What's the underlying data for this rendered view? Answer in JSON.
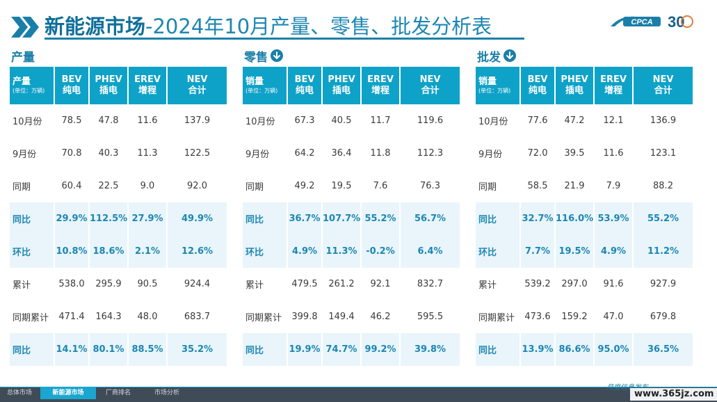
{
  "header": {
    "title_strong": "新能源市场",
    "title_rest": "-2024年10月产量、零售、批发分析表",
    "logo_text": "CPCA",
    "badge_text": "30"
  },
  "colors": {
    "accent": "#1a7fa8",
    "table_header": "#0fa2c8",
    "highlight_row": "#e9f5fa",
    "footer": "#3f4b57"
  },
  "panels": [
    {
      "title": "产量",
      "icon": "",
      "header": {
        "first": "产量",
        "first_sub": "(单位：万辆)",
        "c1a": "BEV",
        "c1b": "纯电",
        "c2a": "PHEV",
        "c2b": "插电",
        "c3a": "EREV",
        "c3b": "增程",
        "c4a": "NEV",
        "c4b": "合计"
      },
      "rows": [
        [
          "10月份",
          "78.5",
          "47.8",
          "11.6",
          "137.9"
        ],
        [
          "9月份",
          "70.8",
          "40.3",
          "11.3",
          "122.5"
        ],
        [
          "同期",
          "60.4",
          "22.5",
          "9.0",
          "92.0"
        ],
        [
          "同比",
          "29.9%",
          "112.5%",
          "27.9%",
          "49.9%"
        ],
        [
          "环比",
          "10.8%",
          "18.6%",
          "2.1%",
          "12.6%"
        ],
        [
          "累计",
          "538.0",
          "295.9",
          "90.5",
          "924.4"
        ],
        [
          "同期累计",
          "471.4",
          "164.3",
          "48.0",
          "683.7"
        ],
        [
          "同比",
          "14.1%",
          "80.1%",
          "88.5%",
          "35.2%"
        ]
      ]
    },
    {
      "title": "零售",
      "icon": "down-arrow-icon",
      "header": {
        "first": "销量",
        "first_sub": "(单位：万辆)",
        "c1a": "BEV",
        "c1b": "纯电",
        "c2a": "PHEV",
        "c2b": "插电",
        "c3a": "EREV",
        "c3b": "增程",
        "c4a": "NEV",
        "c4b": "合计"
      },
      "rows": [
        [
          "10月份",
          "67.3",
          "40.5",
          "11.7",
          "119.6"
        ],
        [
          "9月份",
          "64.2",
          "36.4",
          "11.8",
          "112.3"
        ],
        [
          "同期",
          "49.2",
          "19.5",
          "7.6",
          "76.3"
        ],
        [
          "同比",
          "36.7%",
          "107.7%",
          "55.2%",
          "56.7%"
        ],
        [
          "环比",
          "4.9%",
          "11.3%",
          "-0.2%",
          "6.4%"
        ],
        [
          "累计",
          "479.5",
          "261.2",
          "92.1",
          "832.7"
        ],
        [
          "同期累计",
          "399.8",
          "149.4",
          "46.2",
          "595.5"
        ],
        [
          "同比",
          "19.9%",
          "74.7%",
          "99.2%",
          "39.8%"
        ]
      ]
    },
    {
      "title": "批发",
      "icon": "down-arrow-icon",
      "header": {
        "first": "销量",
        "first_sub": "(单位：万辆)",
        "c1a": "BEV",
        "c1b": "纯电",
        "c2a": "PHEV",
        "c2b": "插电",
        "c3a": "EREV",
        "c3b": "增程",
        "c4a": "NEV",
        "c4b": "合计"
      },
      "rows": [
        [
          "10月份",
          "77.6",
          "47.2",
          "12.1",
          "136.9"
        ],
        [
          "9月份",
          "72.0",
          "39.5",
          "11.6",
          "123.1"
        ],
        [
          "同期",
          "58.5",
          "21.9",
          "7.9",
          "88.2"
        ],
        [
          "同比",
          "32.7%",
          "116.0%",
          "53.9%",
          "55.2%"
        ],
        [
          "环比",
          "7.7%",
          "19.5%",
          "4.9%",
          "11.2%"
        ],
        [
          "累计",
          "539.2",
          "297.0",
          "91.6",
          "927.9"
        ],
        [
          "同期累计",
          "473.6",
          "159.2",
          "47.0",
          "679.8"
        ],
        [
          "同比",
          "13.9%",
          "86.6%",
          "95.0%",
          "36.5%"
        ]
      ]
    }
  ],
  "footer": {
    "tabs": [
      "总体市场",
      "新能源市场",
      "厂商排名",
      "市场分析"
    ],
    "active_tab": "新能源市场",
    "slogan": "月度信息发布",
    "watermark": "www.365jz.com"
  }
}
